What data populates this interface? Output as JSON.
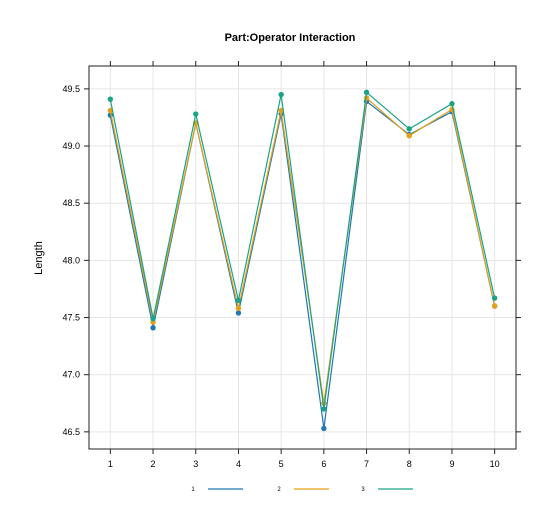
{
  "chart_data": {
    "type": "line",
    "title": "Part:Operator Interaction",
    "xlabel": "",
    "ylabel": "Length",
    "x": [
      1,
      2,
      3,
      4,
      5,
      6,
      7,
      8,
      9,
      10
    ],
    "xlim": [
      0.5,
      10.5
    ],
    "ylim": [
      46.35,
      49.7
    ],
    "yticks": [
      46.5,
      47.0,
      47.5,
      48.0,
      48.5,
      49.0,
      49.5
    ],
    "xtick_labels": [
      "1",
      "2",
      "3",
      "4",
      "5",
      "6",
      "7",
      "8",
      "9",
      "10"
    ],
    "ytick_labels": [
      "46.5",
      "47.0",
      "47.5",
      "48.0",
      "48.5",
      "49.0",
      "49.5"
    ],
    "grid": true,
    "legend_position": "bottom",
    "series": [
      {
        "name": "1",
        "color": "#1f77b4",
        "values": [
          49.27,
          47.41,
          49.2,
          47.54,
          49.28,
          46.53,
          49.39,
          49.1,
          49.3,
          47.6
        ]
      },
      {
        "name": "2",
        "color": "#e6a118",
        "values": [
          49.31,
          47.46,
          49.2,
          47.58,
          49.31,
          46.75,
          49.42,
          49.09,
          49.32,
          47.6
        ]
      },
      {
        "name": "3",
        "color": "#1aa386",
        "values": [
          49.41,
          47.49,
          49.28,
          47.65,
          49.45,
          46.7,
          49.47,
          49.15,
          49.37,
          47.67
        ]
      }
    ]
  }
}
